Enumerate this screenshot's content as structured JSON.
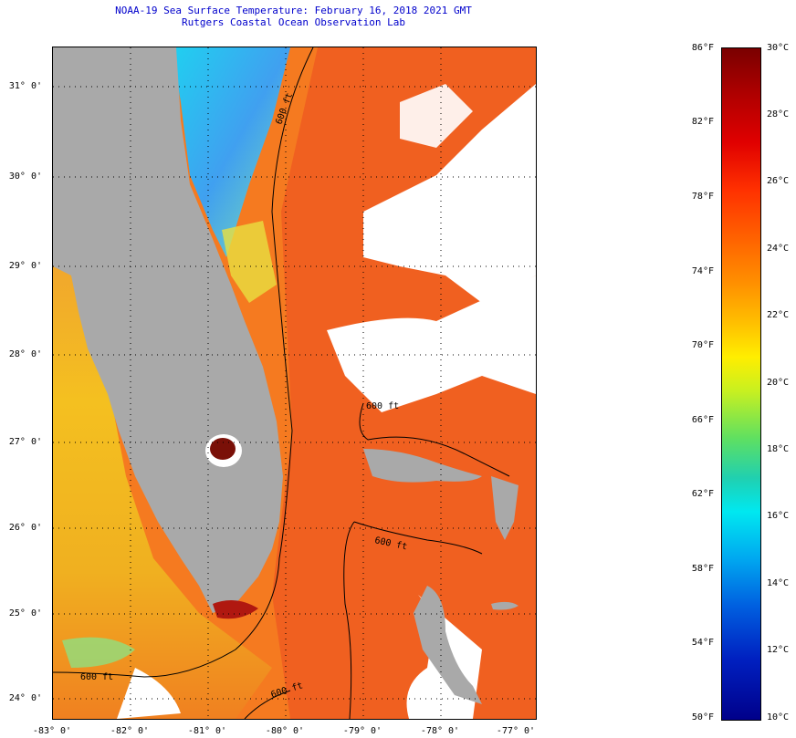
{
  "title": {
    "line1": "NOAA-19 Sea Surface Temperature:  February 16, 2018 2021 GMT",
    "line2": "Rutgers Coastal Ocean Observation Lab"
  },
  "lat_labels": [
    "31° 0'",
    "30° 0'",
    "29° 0'",
    "28° 0'",
    "27° 0'",
    "26° 0'",
    "25° 0'",
    "24° 0'"
  ],
  "lon_labels": [
    "-83° 0'",
    "-82° 0'",
    "-81° 0'",
    "-80° 0'",
    "-79° 0'",
    "-78° 0'",
    "-77° 0'"
  ],
  "contour_labels": [
    "600 ft",
    "600 ft",
    "600 ft",
    "600 ft",
    "600 ft"
  ],
  "colorbar": {
    "fahrenheit": [
      "86°F",
      "82°F",
      "78°F",
      "74°F",
      "70°F",
      "66°F",
      "62°F",
      "58°F",
      "54°F",
      "50°F"
    ],
    "celsius": [
      "30°C",
      "28°C",
      "26°C",
      "24°C",
      "22°C",
      "20°C",
      "18°C",
      "16°C",
      "14°C",
      "12°C",
      "10°C"
    ]
  },
  "colors": {
    "land": "#a9a9a9",
    "gulf_stream": "#f05a1a",
    "cloud": "#ffffff",
    "title": "#0000cc"
  }
}
